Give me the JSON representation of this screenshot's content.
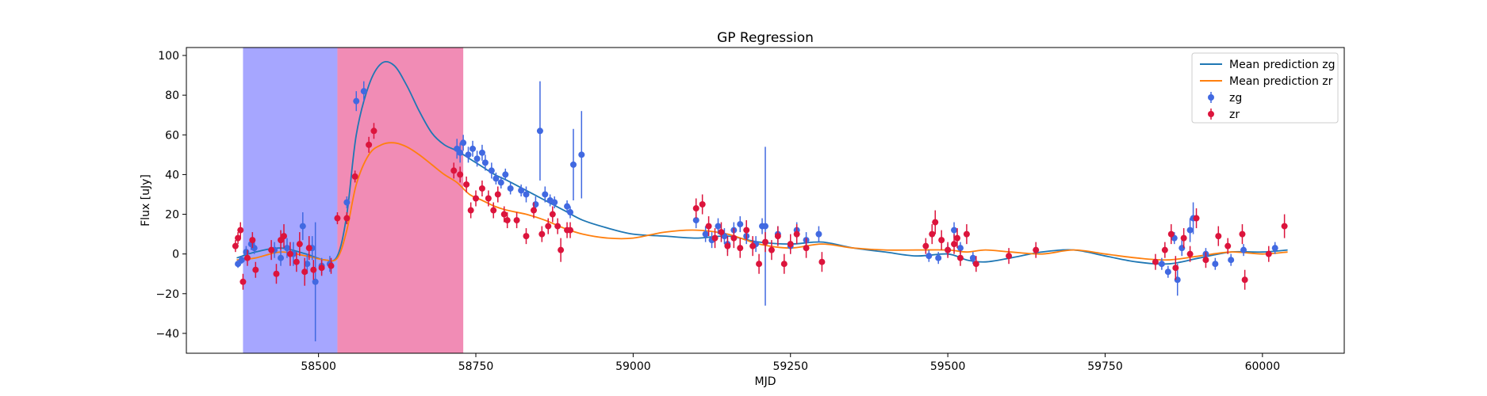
{
  "chart_data": {
    "type": "scatter",
    "title": "GP Regression",
    "xlabel": "MJD",
    "ylabel": "Flux [uJy]",
    "xlim": [
      58290,
      60130
    ],
    "ylim": [
      -50,
      104
    ],
    "xticks": [
      58500,
      58750,
      59000,
      59250,
      59500,
      59750,
      60000
    ],
    "yticks": [
      -40,
      -20,
      0,
      20,
      40,
      60,
      80,
      100
    ],
    "legend_position": "top-right",
    "shaded_regions": [
      {
        "x": [
          58380,
          58530
        ],
        "color": "#0000ff",
        "opacity": 0.35
      },
      {
        "x": [
          58530,
          58730
        ],
        "color": "#e0005a",
        "opacity": 0.45
      }
    ],
    "lines": [
      {
        "name": "Mean prediction zg",
        "color": "#1f77b4",
        "x": [
          58370,
          58400,
          58440,
          58480,
          58510,
          58530,
          58545,
          58560,
          58580,
          58600,
          58620,
          58640,
          58660,
          58680,
          58700,
          58720,
          58740,
          58760,
          58780,
          58800,
          58830,
          58860,
          58890,
          58920,
          58960,
          59000,
          59050,
          59100,
          59150,
          59200,
          59250,
          59300,
          59350,
          59400,
          59450,
          59500,
          59530,
          59560,
          59600,
          59650,
          59700,
          59750,
          59800,
          59850,
          59900,
          59950,
          60000,
          60040
        ],
        "y": [
          -2,
          1,
          3,
          0,
          -3,
          -1,
          20,
          60,
          85,
          96,
          95,
          85,
          72,
          61,
          55,
          52,
          48,
          44,
          40,
          37,
          32,
          27,
          22,
          17,
          13,
          10,
          9,
          8,
          9,
          6,
          5,
          6,
          3,
          1,
          -1,
          0,
          -3,
          -4,
          -2,
          1,
          2,
          -1,
          -4,
          -5,
          -2,
          1,
          1,
          2
        ]
      },
      {
        "name": "Mean prediction zr",
        "color": "#ff7f0e",
        "x": [
          58370,
          58400,
          58440,
          58480,
          58510,
          58530,
          58545,
          58560,
          58580,
          58600,
          58620,
          58640,
          58660,
          58680,
          58700,
          58720,
          58740,
          58760,
          58780,
          58800,
          58830,
          58860,
          58890,
          58920,
          58960,
          59000,
          59050,
          59100,
          59150,
          59200,
          59250,
          59300,
          59350,
          59400,
          59450,
          59500,
          59530,
          59560,
          59600,
          59650,
          59700,
          59750,
          59800,
          59850,
          59900,
          59950,
          60000,
          60040
        ],
        "y": [
          -3,
          -2,
          1,
          -1,
          -3,
          -2,
          12,
          35,
          50,
          55,
          56,
          54,
          50,
          45,
          40,
          36,
          30,
          27,
          24,
          22,
          20,
          17,
          13,
          10,
          8,
          8,
          11,
          12,
          10,
          5,
          3,
          5,
          3,
          2,
          2,
          2,
          1,
          2,
          1,
          0,
          2,
          0,
          -2,
          -3,
          -1,
          1,
          0,
          1
        ]
      }
    ],
    "series": [
      {
        "name": "zg",
        "color": "#4169e1",
        "points": [
          [
            58372,
            -5,
            2
          ],
          [
            58378,
            -3,
            2
          ],
          [
            58385,
            1,
            3
          ],
          [
            58393,
            5,
            3
          ],
          [
            58398,
            3,
            3
          ],
          [
            58430,
            2,
            4
          ],
          [
            58440,
            -2,
            4
          ],
          [
            58450,
            3,
            5
          ],
          [
            58460,
            0,
            6
          ],
          [
            58475,
            14,
            7
          ],
          [
            58482,
            -5,
            5
          ],
          [
            58490,
            3,
            6
          ],
          [
            58495,
            -14,
            30
          ],
          [
            58505,
            -6,
            4
          ],
          [
            58518,
            -5,
            4
          ],
          [
            58545,
            26,
            3
          ],
          [
            58560,
            77,
            5
          ],
          [
            58572,
            82,
            5
          ],
          [
            58720,
            53,
            5
          ],
          [
            58725,
            51,
            5
          ],
          [
            58730,
            56,
            4
          ],
          [
            58738,
            50,
            4
          ],
          [
            58745,
            53,
            4
          ],
          [
            58752,
            48,
            4
          ],
          [
            58760,
            51,
            4
          ],
          [
            58765,
            46,
            4
          ],
          [
            58775,
            42,
            4
          ],
          [
            58782,
            38,
            3
          ],
          [
            58790,
            36,
            3
          ],
          [
            58797,
            40,
            3
          ],
          [
            58805,
            33,
            3
          ],
          [
            58822,
            32,
            3
          ],
          [
            58830,
            30,
            4
          ],
          [
            58845,
            25,
            4
          ],
          [
            58852,
            62,
            25
          ],
          [
            58860,
            30,
            4
          ],
          [
            58868,
            27,
            3
          ],
          [
            58875,
            26,
            3
          ],
          [
            58895,
            24,
            3
          ],
          [
            58900,
            21,
            3
          ],
          [
            58905,
            45,
            18
          ],
          [
            58918,
            50,
            22
          ],
          [
            59100,
            17,
            4
          ],
          [
            59115,
            10,
            4
          ],
          [
            59125,
            7,
            4
          ],
          [
            59135,
            14,
            4
          ],
          [
            59145,
            9,
            4
          ],
          [
            59150,
            5,
            4
          ],
          [
            59160,
            12,
            4
          ],
          [
            59170,
            15,
            4
          ],
          [
            59180,
            9,
            4
          ],
          [
            59195,
            5,
            4
          ],
          [
            59205,
            14,
            4
          ],
          [
            59210,
            14,
            40
          ],
          [
            59230,
            10,
            4
          ],
          [
            59250,
            4,
            4
          ],
          [
            59260,
            12,
            4
          ],
          [
            59275,
            7,
            4
          ],
          [
            59295,
            10,
            4
          ],
          [
            59470,
            -1,
            3
          ],
          [
            59485,
            -2,
            3
          ],
          [
            59500,
            2,
            3
          ],
          [
            59510,
            12,
            4
          ],
          [
            59520,
            3,
            3
          ],
          [
            59540,
            -2,
            3
          ],
          [
            59840,
            -5,
            3
          ],
          [
            59850,
            -9,
            3
          ],
          [
            59860,
            8,
            3
          ],
          [
            59865,
            -13,
            8
          ],
          [
            59872,
            3,
            4
          ],
          [
            59885,
            12,
            6
          ],
          [
            59890,
            18,
            8
          ],
          [
            59910,
            0,
            3
          ],
          [
            59925,
            -5,
            3
          ],
          [
            59950,
            -3,
            3
          ],
          [
            59970,
            2,
            3
          ],
          [
            60020,
            3,
            3
          ]
        ]
      },
      {
        "name": "zr",
        "color": "#dc143c",
        "points": [
          [
            58368,
            4,
            3
          ],
          [
            58372,
            8,
            3
          ],
          [
            58376,
            12,
            4
          ],
          [
            58380,
            -14,
            4
          ],
          [
            58387,
            -2,
            4
          ],
          [
            58395,
            7,
            4
          ],
          [
            58400,
            -8,
            4
          ],
          [
            58425,
            2,
            5
          ],
          [
            58433,
            -10,
            5
          ],
          [
            58440,
            7,
            5
          ],
          [
            58445,
            9,
            6
          ],
          [
            58455,
            0,
            6
          ],
          [
            58465,
            -4,
            5
          ],
          [
            58470,
            5,
            6
          ],
          [
            58478,
            -9,
            7
          ],
          [
            58485,
            3,
            6
          ],
          [
            58492,
            -8,
            5
          ],
          [
            58505,
            -7,
            4
          ],
          [
            58520,
            -6,
            4
          ],
          [
            58530,
            18,
            3
          ],
          [
            58545,
            18,
            3
          ],
          [
            58558,
            39,
            3
          ],
          [
            58580,
            55,
            4
          ],
          [
            58588,
            62,
            4
          ],
          [
            58715,
            42,
            4
          ],
          [
            58725,
            40,
            4
          ],
          [
            58735,
            35,
            4
          ],
          [
            58742,
            22,
            4
          ],
          [
            58750,
            28,
            4
          ],
          [
            58760,
            33,
            4
          ],
          [
            58770,
            28,
            4
          ],
          [
            58778,
            22,
            4
          ],
          [
            58785,
            30,
            4
          ],
          [
            58795,
            20,
            4
          ],
          [
            58800,
            17,
            4
          ],
          [
            58815,
            17,
            4
          ],
          [
            58830,
            9,
            4
          ],
          [
            58842,
            22,
            4
          ],
          [
            58855,
            10,
            4
          ],
          [
            58865,
            14,
            4
          ],
          [
            58872,
            20,
            4
          ],
          [
            58880,
            14,
            4
          ],
          [
            58885,
            2,
            6
          ],
          [
            58895,
            12,
            4
          ],
          [
            58900,
            12,
            4
          ],
          [
            59100,
            23,
            5
          ],
          [
            59110,
            25,
            5
          ],
          [
            59120,
            14,
            5
          ],
          [
            59130,
            8,
            5
          ],
          [
            59140,
            11,
            5
          ],
          [
            59150,
            4,
            5
          ],
          [
            59160,
            8,
            5
          ],
          [
            59170,
            3,
            5
          ],
          [
            59180,
            12,
            5
          ],
          [
            59190,
            4,
            5
          ],
          [
            59200,
            -5,
            5
          ],
          [
            59210,
            6,
            5
          ],
          [
            59220,
            2,
            5
          ],
          [
            59230,
            9,
            5
          ],
          [
            59240,
            -5,
            5
          ],
          [
            59250,
            5,
            5
          ],
          [
            59260,
            10,
            5
          ],
          [
            59275,
            3,
            5
          ],
          [
            59300,
            -4,
            5
          ],
          [
            59465,
            4,
            4
          ],
          [
            59475,
            10,
            5
          ],
          [
            59480,
            16,
            6
          ],
          [
            59490,
            7,
            5
          ],
          [
            59500,
            2,
            4
          ],
          [
            59510,
            5,
            5
          ],
          [
            59515,
            8,
            5
          ],
          [
            59520,
            -2,
            4
          ],
          [
            59530,
            10,
            5
          ],
          [
            59545,
            -5,
            4
          ],
          [
            59597,
            -1,
            4
          ],
          [
            59640,
            2,
            4
          ],
          [
            59830,
            -4,
            4
          ],
          [
            59845,
            2,
            4
          ],
          [
            59855,
            10,
            5
          ],
          [
            59862,
            -7,
            6
          ],
          [
            59875,
            8,
            5
          ],
          [
            59885,
            0,
            4
          ],
          [
            59895,
            18,
            5
          ],
          [
            59910,
            -3,
            4
          ],
          [
            59930,
            9,
            5
          ],
          [
            59945,
            4,
            4
          ],
          [
            59968,
            10,
            5
          ],
          [
            59972,
            -13,
            5
          ],
          [
            60010,
            0,
            4
          ],
          [
            60035,
            14,
            6
          ]
        ]
      }
    ]
  }
}
